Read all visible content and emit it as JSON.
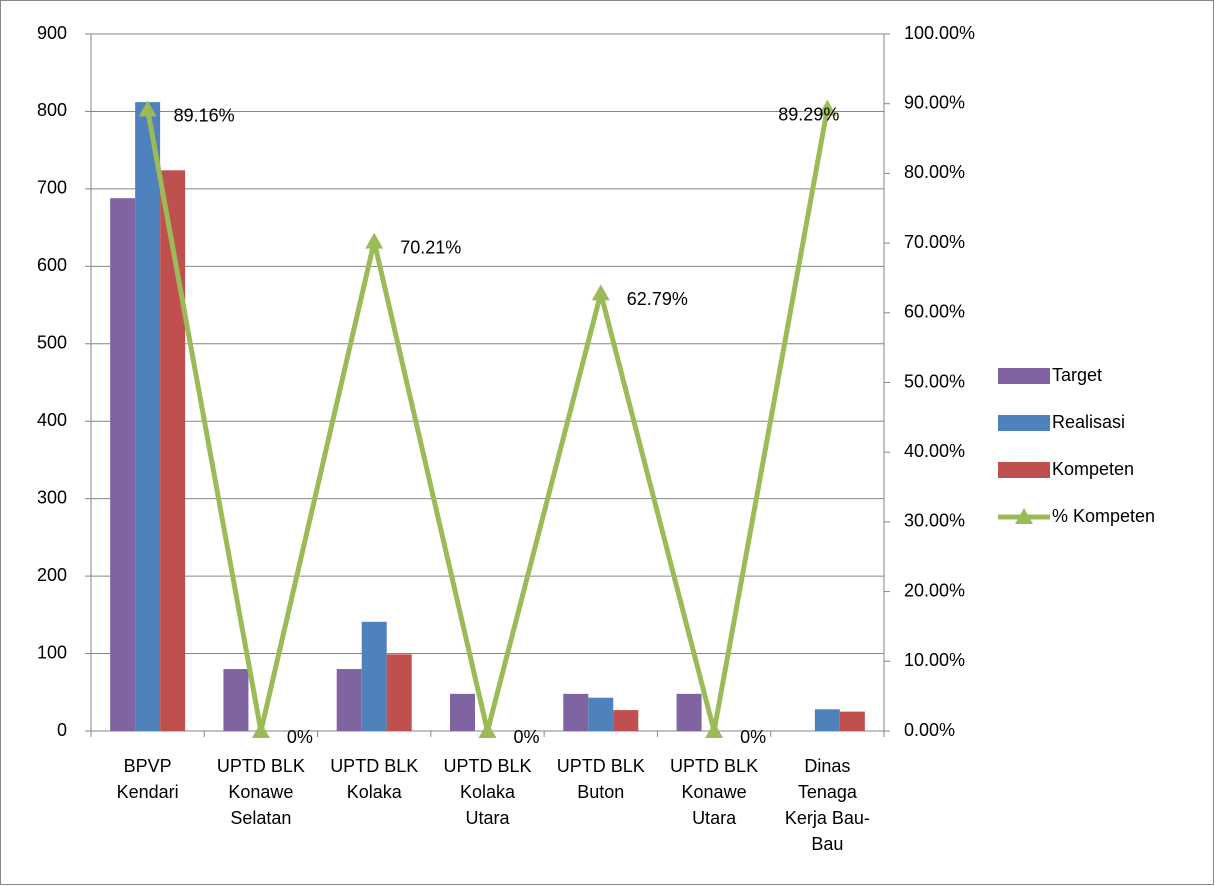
{
  "chart_data": {
    "type": "bar-line",
    "categories": [
      "BPVP Kendari",
      "UPTD BLK Konawe Selatan",
      "UPTD BLK Kolaka",
      "UPTD BLK Kolaka Utara",
      "UPTD BLK Buton",
      "UPTD BLK Konawe Utara",
      "Dinas Tenaga Kerja Bau-Bau"
    ],
    "series": [
      {
        "name": "Target",
        "type": "bar",
        "color": "#8064a2",
        "values": [
          688,
          80,
          80,
          48,
          48,
          48,
          null
        ]
      },
      {
        "name": "Realisasi",
        "type": "bar",
        "color": "#4f81bd",
        "values": [
          812,
          0,
          141,
          0,
          43,
          0,
          28
        ]
      },
      {
        "name": "Kompeten",
        "type": "bar",
        "color": "#c0504d",
        "values": [
          724,
          0,
          99,
          0,
          27,
          0,
          25
        ]
      },
      {
        "name": "% Kompeten",
        "type": "line",
        "axis": "y2",
        "color": "#9bbb59",
        "marker": "triangle",
        "values": [
          89.16,
          0,
          70.21,
          0,
          62.79,
          0,
          89.29
        ],
        "value_labels": [
          "89.16%",
          "0%",
          "70.21%",
          "0%",
          "62.79%",
          "0%",
          "89.29%"
        ]
      }
    ],
    "ylim": [
      0,
      900
    ],
    "yticks": [
      0,
      100,
      200,
      300,
      400,
      500,
      600,
      700,
      800,
      900
    ],
    "y2lim": [
      0,
      100
    ],
    "y2ticks": [
      {
        "value": 0,
        "label": "0.00%"
      },
      {
        "value": 10,
        "label": "10.00%"
      },
      {
        "value": 20,
        "label": "20.00%"
      },
      {
        "value": 30,
        "label": "30.00%"
      },
      {
        "value": 40,
        "label": "40.00%"
      },
      {
        "value": 50,
        "label": "50.00%"
      },
      {
        "value": 60,
        "label": "60.00%"
      },
      {
        "value": 70,
        "label": "70.00%"
      },
      {
        "value": 80,
        "label": "80.00%"
      },
      {
        "value": 90,
        "label": "90.00%"
      },
      {
        "value": 100,
        "label": "100.00%"
      }
    ],
    "grid": true,
    "legend": "right"
  }
}
